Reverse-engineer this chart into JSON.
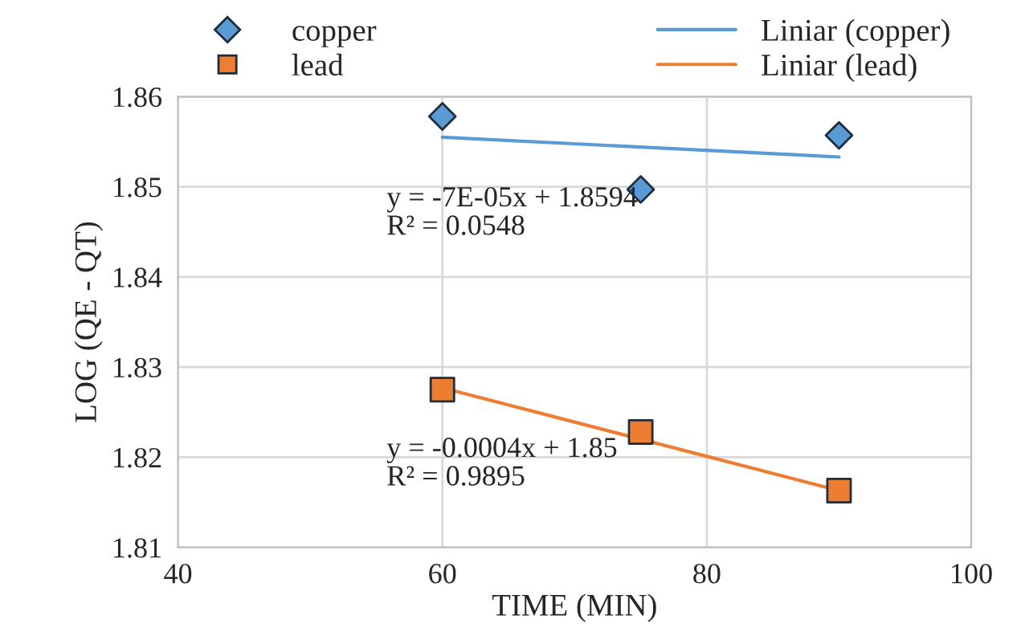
{
  "chart_data": {
    "type": "scatter",
    "xlabel": "TIME (MIN)",
    "ylabel": "LOG (QE - QT)",
    "xlim": [
      40,
      100
    ],
    "xticks": [
      40,
      60,
      80,
      100
    ],
    "ylim": [
      1.81,
      1.86
    ],
    "yticks": [
      1.81,
      1.82,
      1.83,
      1.84,
      1.85,
      1.86
    ],
    "grid": true,
    "legend": "top",
    "series": [
      {
        "name": "copper",
        "marker": "diamond",
        "color": "#5b9bd5",
        "x": [
          60,
          75,
          90
        ],
        "values": [
          1.8578,
          1.8497,
          1.8557
        ]
      },
      {
        "name": "lead",
        "marker": "square",
        "color": "#ed7d31",
        "x": [
          60,
          75,
          90
        ],
        "values": [
          1.8275,
          1.8228,
          1.8163
        ]
      },
      {
        "name": "Liniar (copper)",
        "type": "line",
        "line_style": "solid",
        "color": "#5b9bd5",
        "x": [
          60,
          90
        ],
        "values": [
          1.8555,
          1.8533
        ]
      },
      {
        "name": "Liniar (lead)",
        "type": "line",
        "line_style": "solid",
        "color": "#ed7d31",
        "x": [
          60,
          90
        ],
        "values": [
          1.8277,
          1.8163
        ]
      }
    ],
    "annotations": [
      {
        "text": "y = -7E-05x + 1.8594\nR² = 0.0548",
        "x": 60,
        "y": 1.8555
      },
      {
        "text": "y = -0.0004x + 1.85\nR² = 0.9895",
        "x": 60,
        "y": 1.8277
      }
    ]
  }
}
